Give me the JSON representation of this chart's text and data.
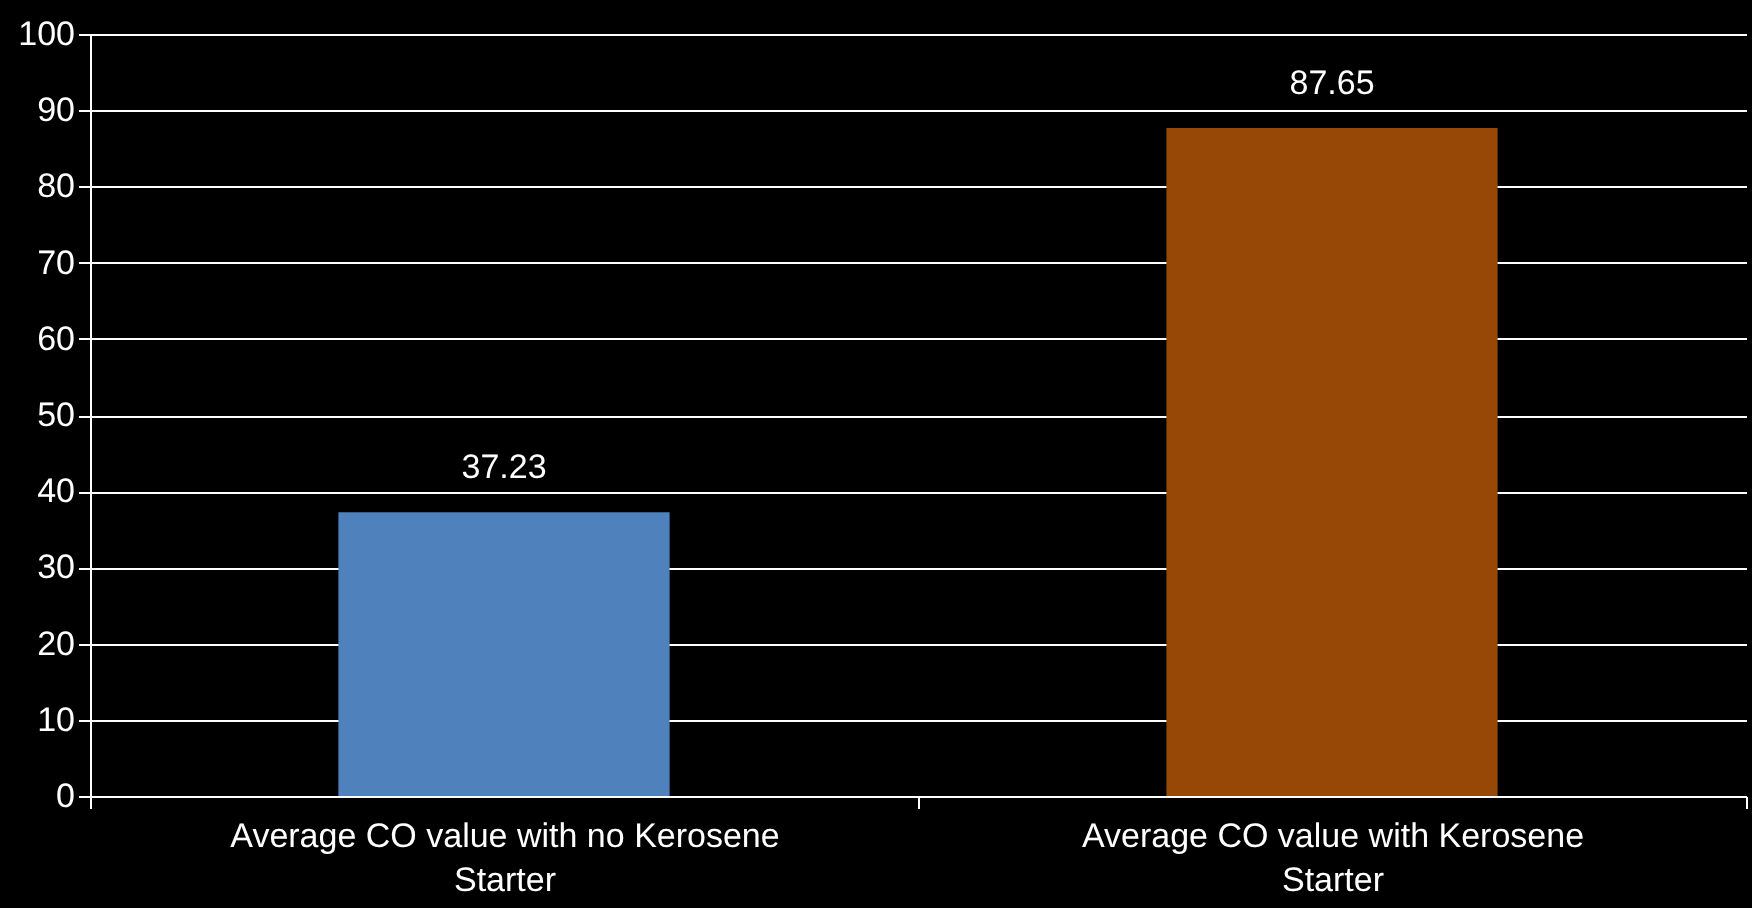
{
  "chart_data": {
    "type": "bar",
    "categories": [
      "Average CO value with no Kerosene Starter",
      "Average CO value with Kerosene Starter"
    ],
    "values": [
      37.23,
      87.65
    ],
    "colors": [
      "#4f81bd",
      "#974806"
    ],
    "ylim": [
      0,
      100
    ],
    "yticks": [
      0,
      10,
      20,
      30,
      40,
      50,
      60,
      70,
      80,
      90,
      100
    ],
    "grid": "y",
    "data_labels": true
  }
}
